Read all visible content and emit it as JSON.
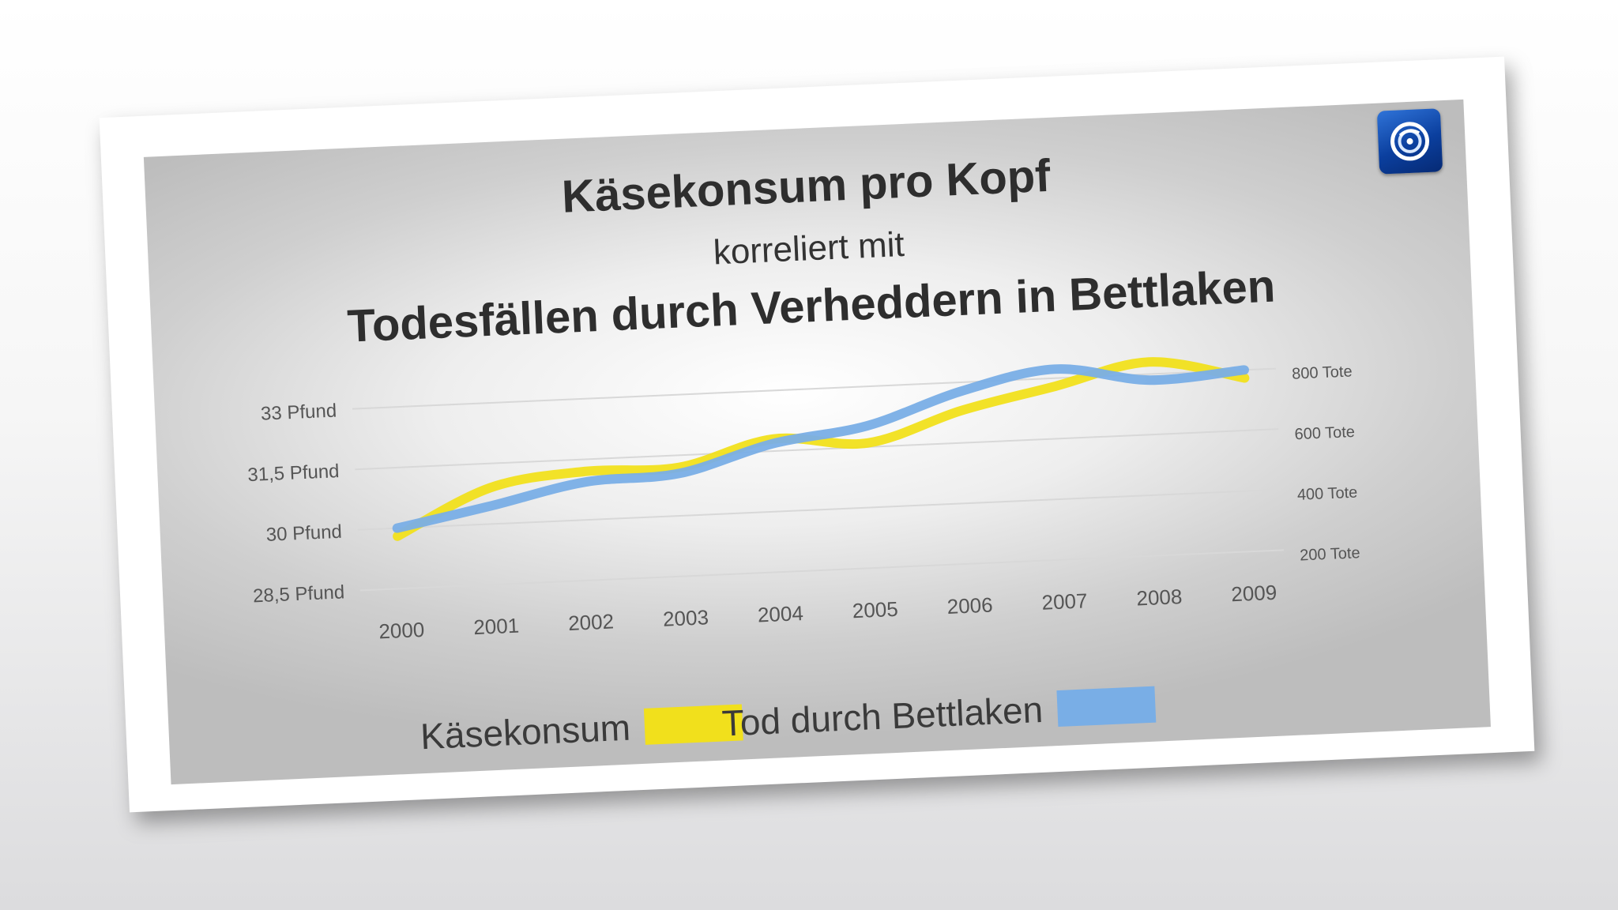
{
  "colors": {
    "cheese": "#f1e01c",
    "bedsheet": "#79aee6",
    "gridline": "#d8d8d8",
    "text": "#2e2e2e",
    "logo": "#1050b8"
  },
  "logo_icon": "tagesschau-globe-icon",
  "chart_data": {
    "type": "line",
    "title": "Käsekonsum pro Kopf",
    "subtitle": "korreliert mit",
    "title_line2": "Todesfällen durch Verheddern in Bettlaken",
    "categories": [
      "2000",
      "2001",
      "2002",
      "2003",
      "2004",
      "2005",
      "2006",
      "2007",
      "2008",
      "2009"
    ],
    "y_left": {
      "ticks": [
        "33 Pfund",
        "31,5 Pfund",
        "30 Pfund",
        "28,5 Pfund"
      ],
      "tick_values": [
        33,
        31.5,
        30,
        28.5
      ],
      "range": [
        28.5,
        33
      ]
    },
    "y_right": {
      "ticks": [
        "800 Tote",
        "600 Tote",
        "400 Tote",
        "200 Tote"
      ],
      "tick_values": [
        800,
        600,
        400,
        200
      ],
      "range": [
        200,
        800
      ]
    },
    "grid": true,
    "smooth": true,
    "series": [
      {
        "name": "Käsekonsum",
        "axis": "left",
        "color": "#f1e01c",
        "values": [
          29.8,
          30.9,
          31.2,
          31.2,
          31.8,
          31.6,
          32.3,
          32.8,
          33.3,
          32.8
        ]
      },
      {
        "name": "Tod durch Bettlaken",
        "axis": "right",
        "color": "#79aee6",
        "values": [
          400,
          460,
          525,
          540,
          625,
          670,
          770,
          830,
          780,
          800
        ]
      }
    ],
    "legend": [
      {
        "label": "Käsekonsum",
        "color": "#f1e01c"
      },
      {
        "label": "Tod durch Bettlaken",
        "color": "#79aee6"
      }
    ],
    "legend_position": "bottom"
  }
}
